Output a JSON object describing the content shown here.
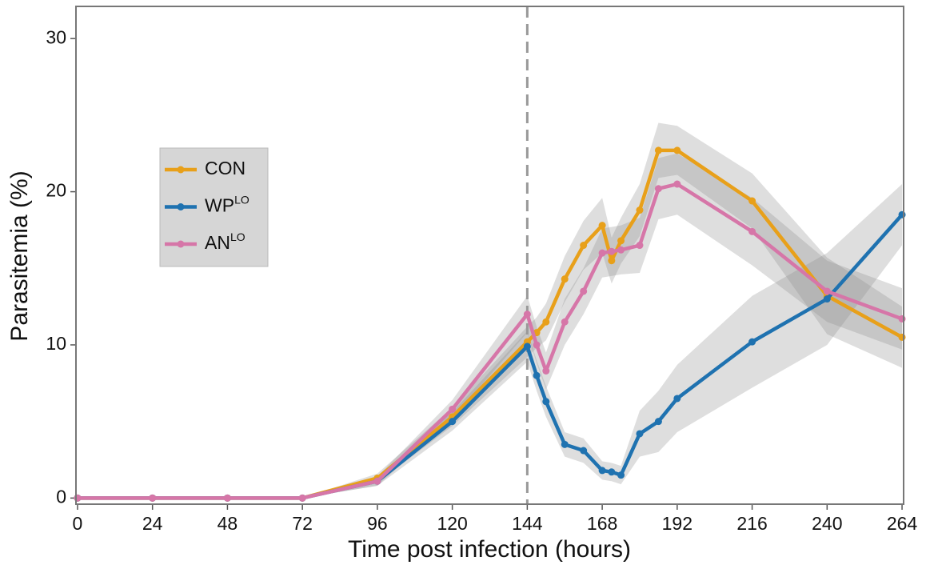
{
  "chart_data": {
    "type": "line",
    "x_label": "Time post infection (hours)",
    "y_label": "Parasitemia (%)",
    "x": [
      0,
      24,
      48,
      72,
      96,
      120,
      144,
      147,
      150,
      156,
      162,
      168,
      171,
      174,
      180,
      186,
      192,
      216,
      240,
      264
    ],
    "series": [
      {
        "name": "CON",
        "color": "#e8a01a",
        "values": [
          0,
          0,
          0,
          0,
          1.3,
          5.3,
          10.2,
          10.8,
          11.5,
          14.3,
          16.5,
          17.8,
          15.5,
          16.8,
          18.8,
          22.7,
          22.7,
          19.4,
          13.2,
          10.5
        ],
        "lower": [
          0,
          0,
          0,
          0,
          1.0,
          4.7,
          9.2,
          9.8,
          10.3,
          12.8,
          14.9,
          16.0,
          14.0,
          15.3,
          17.1,
          20.9,
          21.1,
          17.6,
          10.7,
          8.5
        ],
        "upper": [
          0,
          0,
          0,
          0,
          1.6,
          5.9,
          11.2,
          11.8,
          12.7,
          15.8,
          18.1,
          19.6,
          17.0,
          18.3,
          20.5,
          24.5,
          24.3,
          21.2,
          15.7,
          12.5
        ]
      },
      {
        "name": "WP",
        "name_sup": "LO",
        "color": "#1f72b0",
        "values": [
          0,
          0,
          0,
          0,
          1.1,
          5.0,
          9.9,
          8.0,
          6.3,
          3.5,
          3.1,
          1.8,
          1.7,
          1.5,
          4.2,
          5.0,
          6.5,
          10.2,
          13.0,
          18.5
        ],
        "lower": [
          0,
          0,
          0,
          0,
          0.8,
          4.4,
          8.9,
          7.0,
          5.3,
          2.7,
          2.3,
          1.2,
          1.1,
          0.9,
          2.7,
          3.0,
          4.3,
          7.2,
          10.0,
          16.5
        ],
        "upper": [
          0,
          0,
          0,
          0,
          1.4,
          5.6,
          10.9,
          9.0,
          7.3,
          4.3,
          3.9,
          2.4,
          2.3,
          2.1,
          5.7,
          7.0,
          8.7,
          13.2,
          16.0,
          20.5
        ]
      },
      {
        "name": "AN",
        "name_sup": "LO",
        "color": "#d676a8",
        "values": [
          0,
          0,
          0,
          0,
          1.1,
          5.8,
          12.0,
          10.0,
          8.3,
          11.5,
          13.5,
          16.0,
          16.1,
          16.2,
          16.5,
          20.2,
          20.5,
          17.4,
          13.5,
          11.7
        ],
        "lower": [
          0,
          0,
          0,
          0,
          0.8,
          5.2,
          10.8,
          8.8,
          7.1,
          10.0,
          12.0,
          14.4,
          14.5,
          14.6,
          14.7,
          18.2,
          18.5,
          15.2,
          11.5,
          9.7
        ],
        "upper": [
          0,
          0,
          0,
          0,
          1.4,
          6.4,
          13.2,
          11.2,
          9.5,
          13.0,
          15.0,
          17.6,
          17.7,
          17.8,
          18.3,
          22.2,
          22.5,
          19.6,
          15.5,
          13.7
        ]
      }
    ],
    "xlim": [
      -0.5,
      264.5
    ],
    "ylim": [
      -0.4,
      32.1
    ],
    "xticks": [
      0,
      24,
      48,
      72,
      96,
      120,
      144,
      168,
      192,
      216,
      240,
      264
    ],
    "yticks": [
      0,
      10,
      20,
      30
    ],
    "vline": 144,
    "grid": false,
    "legend_position": "left"
  }
}
